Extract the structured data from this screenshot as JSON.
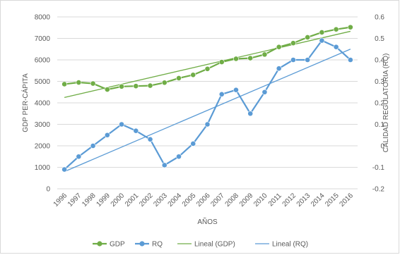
{
  "chart_data": {
    "type": "line",
    "x": [
      "1996",
      "1997",
      "1998",
      "1999",
      "2000",
      "2001",
      "2002",
      "2003",
      "2004",
      "2005",
      "2006",
      "2007",
      "2008",
      "2009",
      "2010",
      "2011",
      "2012",
      "2013",
      "2014",
      "2015",
      "2016"
    ],
    "xlabel": "AÑOS",
    "ylabel": "GDP PER-CÁPITA",
    "ylabel_right": "CALIDAD REGULATORIA (RQ)",
    "ylim": [
      0,
      8000
    ],
    "ylim_right": [
      -0.2,
      0.6
    ],
    "yticks": [
      "0",
      "1000",
      "2000",
      "3000",
      "4000",
      "5000",
      "6000",
      "7000",
      "8000"
    ],
    "yticks_right": [
      "-0.2",
      "-0.1",
      "0",
      "0.1",
      "0.2",
      "0.3",
      "0.4",
      "0.5",
      "0.6"
    ],
    "grid": true,
    "legend_position": "bottom",
    "series": [
      {
        "name": "GDP",
        "axis": "left",
        "color": "#70ad47",
        "marker": "circle",
        "values": [
          4870,
          4950,
          4900,
          4620,
          4760,
          4780,
          4800,
          4940,
          5150,
          5300,
          5580,
          5900,
          6050,
          6080,
          6250,
          6600,
          6780,
          7050,
          7280,
          7420,
          7520
        ]
      },
      {
        "name": "RQ",
        "axis": "right",
        "color": "#5b9bd5",
        "marker": "circle",
        "values": [
          -0.11,
          -0.05,
          0.0,
          0.05,
          0.1,
          0.07,
          0.03,
          -0.09,
          -0.05,
          0.01,
          0.1,
          0.24,
          0.26,
          0.15,
          0.25,
          0.36,
          0.4,
          0.4,
          0.49,
          0.46,
          0.4
        ]
      }
    ],
    "trendlines": [
      {
        "name": "Lineal (GDP)",
        "axis": "left",
        "color": "#70ad47",
        "start": 4250,
        "end": 7330
      },
      {
        "name": "Lineal (RQ)",
        "axis": "right",
        "color": "#5b9bd5",
        "start": -0.12,
        "end": 0.45
      }
    ]
  }
}
